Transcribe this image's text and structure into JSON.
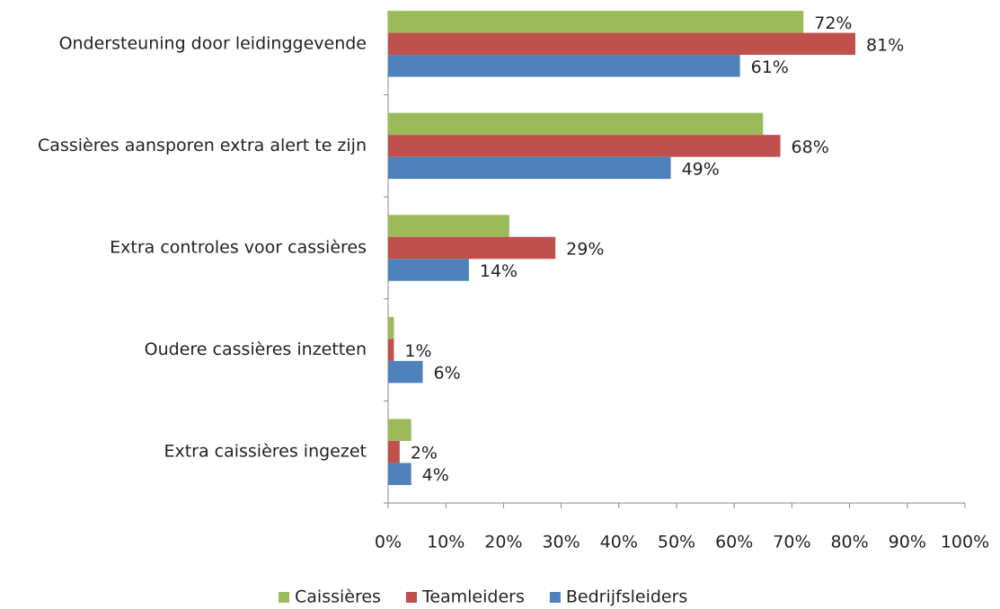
{
  "chart_data": {
    "type": "bar",
    "orientation": "horizontal",
    "categories": [
      "Ondersteuning door leidinggevende",
      "Cassières aansporen extra alert te zijn",
      "Extra controles voor cassières",
      "Oudere cassières inzetten",
      "Extra caissières ingezet"
    ],
    "series": [
      {
        "name": "Caissières",
        "color": "#9bbb59",
        "values": [
          72,
          65,
          21,
          1,
          4
        ],
        "value_labels": [
          "72%",
          null,
          null,
          null,
          null
        ]
      },
      {
        "name": "Teamleiders",
        "color": "#c0504d",
        "values": [
          81,
          68,
          29,
          1,
          2
        ],
        "value_labels": [
          "81%",
          "68%",
          "29%",
          "1%",
          "2%"
        ]
      },
      {
        "name": "Bedrijfsleiders",
        "color": "#4f81bd",
        "values": [
          61,
          49,
          14,
          6,
          4
        ],
        "value_labels": [
          "61%",
          "49%",
          "14%",
          "6%",
          "4%"
        ]
      }
    ],
    "xlim": [
      0,
      100
    ],
    "xticks": [
      {
        "value": 0,
        "label": "0%"
      },
      {
        "value": 10,
        "label": "10%"
      },
      {
        "value": 20,
        "label": "20%"
      },
      {
        "value": 30,
        "label": "30%"
      },
      {
        "value": 40,
        "label": "40%"
      },
      {
        "value": 50,
        "label": "50%"
      },
      {
        "value": 60,
        "label": "60%"
      },
      {
        "value": 70,
        "label": "70%"
      },
      {
        "value": 80,
        "label": "80%"
      },
      {
        "value": 90,
        "label": "90%"
      },
      {
        "value": 100,
        "label": "100%"
      }
    ],
    "legend": "bottom"
  }
}
